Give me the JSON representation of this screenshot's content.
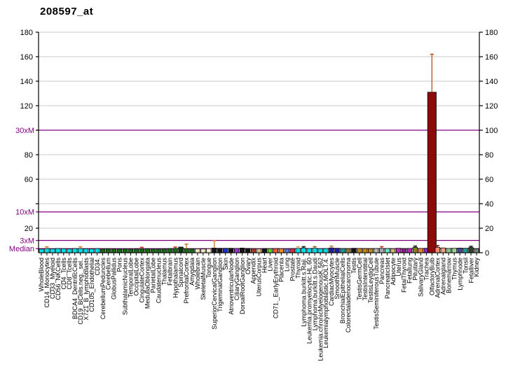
{
  "page": {
    "background": "#FFFFFF"
  },
  "chart_data": {
    "type": "bar",
    "title": "208597_at",
    "ylim": [
      0,
      180
    ],
    "grid_step": 20,
    "grid_on": true,
    "grid_color": "#C9C9C9",
    "axis_color": "#000000",
    "accent_color": "#800080",
    "error_bar_color": "#B4561E",
    "left_axis_tick_labels": [
      {
        "value": 180,
        "label": "180"
      },
      {
        "value": 160,
        "label": "160"
      },
      {
        "value": 140,
        "label": "140"
      },
      {
        "value": 120,
        "label": "120"
      },
      {
        "value": 80,
        "label": "80"
      },
      {
        "value": 60,
        "label": "60"
      },
      {
        "value": 20,
        "label": "20"
      }
    ],
    "right_axis_tick_labels": [
      {
        "value": 180,
        "label": "180"
      },
      {
        "value": 160,
        "label": "160"
      },
      {
        "value": 140,
        "label": "140"
      },
      {
        "value": 120,
        "label": "120"
      },
      {
        "value": 100,
        "label": "100"
      },
      {
        "value": 80,
        "label": "80"
      },
      {
        "value": 60,
        "label": "60"
      },
      {
        "value": 40,
        "label": "40"
      },
      {
        "value": 20,
        "label": "20"
      },
      {
        "value": 0,
        "label": "0"
      }
    ],
    "reference_lines": [
      {
        "label": "30xM",
        "value": 100
      },
      {
        "label": "10xM",
        "value": 33.3
      },
      {
        "label": "3xM",
        "value": 10
      },
      {
        "label": "Median",
        "value": 3.3
      }
    ],
    "categories": [
      {
        "label": "WholeBlood",
        "value": 3.0,
        "color": "#00DEE8"
      },
      {
        "label": "CD14_Monocytes",
        "value": 3.4,
        "color": "#00DEE8",
        "err": 4.8,
        "cap": "#C87830"
      },
      {
        "label": "CD33_Myeloid",
        "value": 3.2,
        "color": "#00DEE8"
      },
      {
        "label": "CD56_NKCells",
        "value": 3.4,
        "color": "#00DEE8"
      },
      {
        "label": "CD4_Tcells",
        "value": 3.3,
        "color": "#00DEE8"
      },
      {
        "label": "CD8_Tcells",
        "value": 3.1,
        "color": "#00DEE8"
      },
      {
        "label": "BDCA4_DentriticCells",
        "value": 3.4,
        "color": "#00DEE8"
      },
      {
        "label": "CD19_BCells.neg._sel..",
        "value": 3.4,
        "color": "#00DEE8",
        "err": 4.8,
        "cap": "#C87830"
      },
      {
        "label": "X721_B_lymphoblasts",
        "value": 3.2,
        "color": "#00DEE8"
      },
      {
        "label": "CD105_Endothelial",
        "value": 3.1,
        "color": "#00DEE8"
      },
      {
        "label": "CD34.",
        "value": 3.4,
        "color": "#00DEE8"
      },
      {
        "label": "CerebellumPeduncles",
        "value": 3.1,
        "color": "#186818"
      },
      {
        "label": "Cerebellum",
        "value": 3.3,
        "color": "#186818"
      },
      {
        "label": "GlobusPallidus",
        "value": 3.1,
        "color": "#186818"
      },
      {
        "label": "Pons",
        "value": 3.1,
        "color": "#186818"
      },
      {
        "label": "SubthalamicNucleus",
        "value": 3.2,
        "color": "#186818"
      },
      {
        "label": "TemporalLobe",
        "value": 3.1,
        "color": "#186818"
      },
      {
        "label": "OccipitalLobe",
        "value": 3.1,
        "color": "#186818"
      },
      {
        "label": "CingulateCortex",
        "value": 3.3,
        "color": "#186818",
        "err": 4.4,
        "cap": "#C03028"
      },
      {
        "label": "MedullaOblongata",
        "value": 3.2,
        "color": "#186818"
      },
      {
        "label": "ParietalLobe",
        "value": 3.1,
        "color": "#186818"
      },
      {
        "label": "Caudatenucleus",
        "value": 3.1,
        "color": "#186818"
      },
      {
        "label": "Thalamus",
        "value": 3.1,
        "color": "#186818"
      },
      {
        "label": "Fetalbrain",
        "value": 3.4,
        "color": "#186818"
      },
      {
        "label": "Hypothalamus",
        "value": 3.5,
        "color": "#186818",
        "err": 4.6,
        "cap": "#C03028"
      },
      {
        "label": "Spinalcord",
        "value": 4.6,
        "color": "#123812"
      },
      {
        "label": "PrefrontalCortex",
        "value": 3.3,
        "color": "#186818",
        "err": 7.0,
        "cap": "#C87830"
      },
      {
        "label": "Amygdala",
        "value": 3.2,
        "color": "#186818"
      },
      {
        "label": "Wholebrain",
        "value": 3.2,
        "color": "#F0E2BE"
      },
      {
        "label": "SkeletalMuscle",
        "value": 3.1,
        "color": "#F0E2BE"
      },
      {
        "label": "Tongue",
        "value": 3.3,
        "color": "#F8EED8"
      },
      {
        "label": "SuperiorCervicalGanglion",
        "value": 3.8,
        "color": "#141414",
        "err": 9.8,
        "cap": "#C87830"
      },
      {
        "label": "TrigeminalGanglion",
        "value": 3.6,
        "color": "#141414"
      },
      {
        "label": "Skin",
        "value": 3.6,
        "color": "#1830C8"
      },
      {
        "label": "AtrioventricularNode",
        "value": 3.6,
        "color": "#141414"
      },
      {
        "label": "CiliaryGanglion",
        "value": 3.5,
        "color": "#9933CC"
      },
      {
        "label": "DorsalRootGanglion",
        "value": 3.8,
        "color": "#141414"
      },
      {
        "label": "Ovary",
        "value": 3.5,
        "color": "#141414"
      },
      {
        "label": "Appendix",
        "value": 3.3,
        "color": "#A83828"
      },
      {
        "label": "UterusCorpus",
        "value": 3.2,
        "color": "#E2BC80"
      },
      {
        "label": "Heart",
        "value": 3.4,
        "color": "#141414"
      },
      {
        "label": "Liver",
        "value": 3.3,
        "color": "#58D820"
      },
      {
        "label": "CD71._EarlyErythroid",
        "value": 3.4,
        "color": "#F06038"
      },
      {
        "label": "Placenta",
        "value": 3.3,
        "color": "#F08828"
      },
      {
        "label": "Lung",
        "value": 3.2,
        "color": "#5878D8"
      },
      {
        "label": "Prostate",
        "value": 3.4,
        "color": "#DC2844"
      },
      {
        "label": "Thyroid",
        "value": 3.5,
        "color": "#00DEE8",
        "err": 4.8,
        "cap": "#C8A060"
      },
      {
        "label": "Lymphoma.burkitt.s.Raji.",
        "value": 3.9,
        "color": "#00DEE8",
        "err": 4.9,
        "cap": "#181818"
      },
      {
        "label": "Leukemia.promyelocytic.HL.60",
        "value": 3.4,
        "color": "#00DEE8"
      },
      {
        "label": "Lymphoma.burkitt.s.Daudi",
        "value": 3.6,
        "color": "#00DEE8",
        "err": 4.9,
        "cap": "#8B5A2B"
      },
      {
        "label": "Leukemia.chronicMyelogenousK.562",
        "value": 3.3,
        "color": "#00DEE8"
      },
      {
        "label": "Leukemialymphoblastic.MOLT.4.",
        "value": 3.4,
        "color": "#00DEE8"
      },
      {
        "label": "CardiacMyocytes",
        "value": 3.9,
        "color": "#2020A0",
        "err": 5.4,
        "cap": "#C87830"
      },
      {
        "label": "SmoothMuscle",
        "value": 3.6,
        "color": "#2020A0"
      },
      {
        "label": "BronchialEpithelialCells",
        "value": 3.4,
        "color": "#189898"
      },
      {
        "label": "Colorectaladenocarcinoma",
        "value": 3.3,
        "color": "#907838"
      },
      {
        "label": "Testis",
        "value": 3.6,
        "color": "#141414"
      },
      {
        "label": "TestisGermCell",
        "value": 3.5,
        "color": "#C08818"
      },
      {
        "label": "TestisInterstitial",
        "value": 3.4,
        "color": "#C08818"
      },
      {
        "label": "TestisLeydigCell",
        "value": 3.3,
        "color": "#C08818"
      },
      {
        "label": "TestisSeminiferousTubule",
        "value": 3.4,
        "color": "#B8B8B8"
      },
      {
        "label": "Pancreas",
        "value": 3.5,
        "color": "#A8A8B0",
        "err": 4.9,
        "cap": "#C03028"
      },
      {
        "label": "PancreaticIslet",
        "value": 3.4,
        "color": "#68E8C0"
      },
      {
        "label": "Adipocyte",
        "value": 3.3,
        "color": "#C8B878"
      },
      {
        "label": "Uterus",
        "value": 3.6,
        "color": "#C028C0"
      },
      {
        "label": "FetalThyroid",
        "value": 3.4,
        "color": "#882088"
      },
      {
        "label": "Fetallung",
        "value": 3.5,
        "color": "#B828B8"
      },
      {
        "label": "Pituitary",
        "value": 4.4,
        "color": "#888020",
        "err": 5.4,
        "cap": "#181818"
      },
      {
        "label": "SalivaryGland",
        "value": 3.5,
        "color": "#F08030"
      },
      {
        "label": "Trachea",
        "value": 3.6,
        "color": "#8828C8"
      },
      {
        "label": "OlfactoryBulb",
        "value": 131,
        "color": "#8B0A0A",
        "err": 162,
        "wide": true
      },
      {
        "label": "AdrenalCortex",
        "value": 4.4,
        "color": "#F09070",
        "err": 5.8,
        "cap": "#7A1010"
      },
      {
        "label": "Adrenalgland",
        "value": 3.9,
        "color": "#F0A080"
      },
      {
        "label": "Bonemarrow",
        "value": 3.5,
        "color": "#88C888"
      },
      {
        "label": "Thymus",
        "value": 3.6,
        "color": "#98D098"
      },
      {
        "label": "Lymphnode",
        "value": 3.8,
        "color": "#484898"
      },
      {
        "label": "Tonsil",
        "value": 3.6,
        "color": "#209890"
      },
      {
        "label": "Fetalliver",
        "value": 4.2,
        "color": "#284828",
        "err": 5.2,
        "cap": "#181818"
      },
      {
        "label": "Kidney",
        "value": 3.3,
        "color": "#788078"
      }
    ]
  }
}
